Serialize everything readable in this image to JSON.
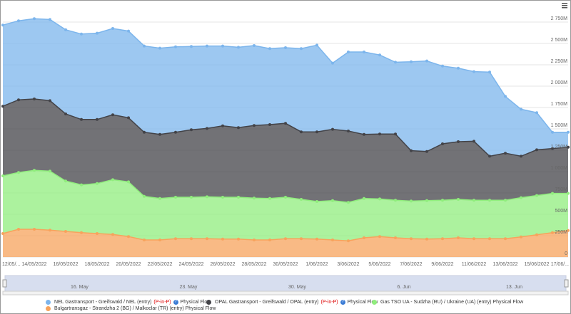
{
  "chart_data": {
    "type": "stacked_area",
    "categories": [
      "12/05/...",
      null,
      "14/05/2022",
      null,
      "16/05/2022",
      null,
      "18/05/2022",
      null,
      "20/05/2022",
      null,
      "22/05/2022",
      null,
      "24/05/2022",
      null,
      "26/05/2022",
      null,
      "28/05/2022",
      null,
      "30/05/2022",
      null,
      "1/06/2022",
      null,
      "3/06/2022",
      null,
      "5/06/2022",
      null,
      "7/06/2022",
      null,
      "9/06/2022",
      null,
      "11/06/2022",
      null,
      "13/06/2022",
      null,
      "15/06/2022",
      null,
      "17/06/..."
    ],
    "series": [
      {
        "name": "NEL Gastransport - Greifswald / NEL (entry)",
        "tag": "(P-in-P)",
        "suffix": "Physical Flow",
        "color": "#7cb5ec",
        "values": [
          950,
          925,
          940,
          950,
          985,
          1000,
          1010,
          1010,
          1015,
          1010,
          1010,
          1000,
          975,
          965,
          935,
          940,
          935,
          890,
          885,
          975,
          1015,
          775,
          925,
          965,
          925,
          840,
          1040,
          1060,
          910,
          860,
          815,
          985,
          665,
          550,
          435,
          190,
          175
        ]
      },
      {
        "name": "OPAL Gastransport - Greifswald / OPAL (entry)",
        "tag": "(P-in-P)",
        "suffix": "Physical Flow",
        "color": "#434348",
        "values": [
          815,
          850,
          835,
          825,
          785,
          765,
          750,
          760,
          750,
          750,
          750,
          760,
          790,
          800,
          835,
          815,
          850,
          865,
          865,
          790,
          815,
          835,
          835,
          750,
          760,
          775,
          590,
          575,
          660,
          675,
          690,
          515,
          550,
          485,
          535,
          525,
          540
        ]
      },
      {
        "name": "Gas TSO UA - Sudzha (RU) / Ukraine (UA) (entry) Physical Flow",
        "color": "#90ed7d",
        "values": [
          675,
          665,
          690,
          690,
          590,
          560,
          585,
          640,
          640,
          510,
          485,
          485,
          485,
          490,
          490,
          490,
          490,
          485,
          485,
          460,
          440,
          460,
          450,
          460,
          440,
          440,
          440,
          450,
          450,
          450,
          450,
          450,
          450,
          460,
          460,
          460,
          435
        ]
      },
      {
        "name": "Bulgartransgaz - Strandzha 2 (BG) / Malkoclar (TR) (entry) Physical Flow",
        "color": "#f7a35c",
        "values": [
          275,
          325,
          325,
          315,
          300,
          285,
          275,
          265,
          240,
          200,
          200,
          215,
          215,
          215,
          210,
          210,
          200,
          200,
          215,
          215,
          210,
          200,
          190,
          225,
          240,
          225,
          215,
          210,
          215,
          225,
          215,
          215,
          215,
          235,
          260,
          285,
          310
        ]
      }
    ],
    "ylim": [
      0,
      3000
    ],
    "yticks": [
      0,
      {
        "value": 250,
        "label": "250M"
      },
      {
        "value": 500,
        "label": "500M"
      },
      {
        "value": 750,
        "label": "750M"
      },
      {
        "value": 1000,
        "label": "1 000M"
      },
      {
        "value": 1250,
        "label": "1 250M"
      },
      {
        "value": 1500,
        "label": "1 500M"
      },
      {
        "value": 1750,
        "label": "1 750M"
      },
      {
        "value": 2000,
        "label": "2 000M"
      },
      {
        "value": 2250,
        "label": "2 250M"
      },
      {
        "value": 2500,
        "label": "2 500M"
      },
      {
        "value": 2750,
        "label": "2 750M"
      }
    ],
    "grid": true,
    "help_icon": "?",
    "navigator_labels": [
      "16. May",
      "23. May",
      "30. May",
      "6. Jun",
      "13. Jun"
    ]
  }
}
